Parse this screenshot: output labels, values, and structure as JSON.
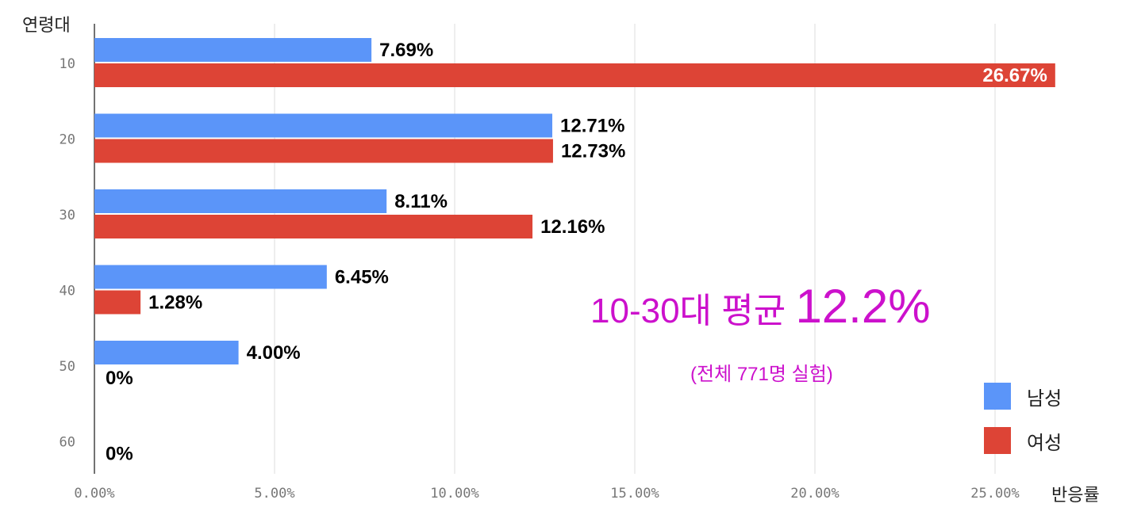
{
  "chart_data": {
    "type": "bar",
    "orientation": "horizontal",
    "ylabel": "연령대",
    "xlabel": "반응률",
    "categories": [
      "10",
      "20",
      "30",
      "40",
      "50",
      "60"
    ],
    "series": [
      {
        "name": "남성",
        "color": "#5b95f9",
        "values": [
          7.69,
          12.71,
          8.11,
          6.45,
          4.0,
          null
        ],
        "labels": [
          "7.69%",
          "12.71%",
          "8.11%",
          "6.45%",
          "4.00%",
          "0%"
        ]
      },
      {
        "name": "여성",
        "color": "#dd4436",
        "values": [
          26.67,
          12.73,
          12.16,
          1.28,
          0,
          null
        ],
        "labels": [
          "26.67%",
          "12.73%",
          "12.16%",
          "1.28%",
          "0%",
          null
        ]
      }
    ],
    "xlim": [
      0,
      27
    ],
    "xticks": [
      0,
      5,
      10,
      15,
      20,
      25
    ],
    "xtick_labels": [
      "0.00%",
      "5.00%",
      "10.00%",
      "15.00%",
      "20.00%",
      "25.00%"
    ],
    "grid": true,
    "legend_position": "bottom-right"
  },
  "annotation": {
    "main_part1": "10-30대 평균 ",
    "main_part2": "12.2%",
    "sub": "(전체 771명 실험)",
    "color": "#cc11cc"
  }
}
